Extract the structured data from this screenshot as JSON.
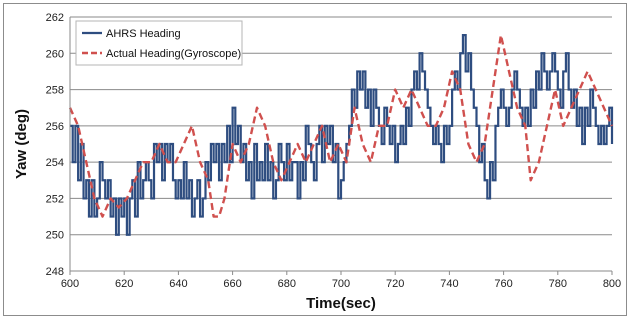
{
  "chart_data": {
    "type": "line",
    "title": "",
    "xlabel": "Time(sec)",
    "ylabel": "Yaw (deg)",
    "xlim": [
      600,
      800
    ],
    "ylim": [
      248,
      262
    ],
    "x_ticks": [
      600,
      620,
      640,
      660,
      680,
      700,
      720,
      740,
      760,
      780,
      800
    ],
    "y_ticks": [
      248,
      250,
      252,
      254,
      256,
      258,
      260,
      262
    ],
    "grid": "horizontal",
    "legend_position": "top-left",
    "series": [
      {
        "name": "AHRS Heading",
        "color": "#2e4d80",
        "style": "solid",
        "x": [
          600,
          601,
          602,
          603,
          604,
          605,
          606,
          607,
          608,
          609,
          610,
          611,
          612,
          613,
          614,
          615,
          616,
          617,
          618,
          619,
          620,
          621,
          622,
          623,
          624,
          625,
          626,
          627,
          628,
          629,
          630,
          631,
          632,
          633,
          634,
          635,
          636,
          637,
          638,
          639,
          640,
          641,
          642,
          643,
          644,
          645,
          646,
          647,
          648,
          649,
          650,
          651,
          652,
          653,
          654,
          655,
          656,
          657,
          658,
          659,
          660,
          661,
          662,
          663,
          664,
          665,
          666,
          667,
          668,
          669,
          670,
          671,
          672,
          673,
          674,
          675,
          676,
          677,
          678,
          679,
          680,
          681,
          682,
          683,
          684,
          685,
          686,
          687,
          688,
          689,
          690,
          691,
          692,
          693,
          694,
          695,
          696,
          697,
          698,
          699,
          700,
          701,
          702,
          703,
          704,
          705,
          706,
          707,
          708,
          709,
          710,
          711,
          712,
          713,
          714,
          715,
          716,
          717,
          718,
          719,
          720,
          721,
          722,
          723,
          724,
          725,
          726,
          727,
          728,
          729,
          730,
          731,
          732,
          733,
          734,
          735,
          736,
          737,
          738,
          739,
          740,
          741,
          742,
          743,
          744,
          745,
          746,
          747,
          748,
          749,
          750,
          751,
          752,
          753,
          754,
          755,
          756,
          757,
          758,
          759,
          760,
          761,
          762,
          763,
          764,
          765,
          766,
          767,
          768,
          769,
          770,
          771,
          772,
          773,
          774,
          775,
          776,
          777,
          778,
          779,
          780,
          781,
          782,
          783,
          784,
          785,
          786,
          787,
          788,
          789,
          790,
          791,
          792,
          793,
          794,
          795,
          796,
          797,
          798,
          799,
          800
        ],
        "values": [
          256,
          254,
          256,
          253,
          255,
          252,
          253,
          251,
          253,
          251,
          252,
          254,
          253,
          252,
          253,
          251,
          252,
          250,
          252,
          251,
          252,
          250,
          252,
          253,
          251,
          254,
          252,
          253,
          254,
          253,
          252,
          255,
          254,
          255,
          253,
          255,
          254,
          255,
          253,
          252,
          253,
          252,
          254,
          252,
          253,
          251,
          252,
          253,
          251,
          252,
          254,
          253,
          255,
          254,
          255,
          253,
          255,
          254,
          256,
          254,
          257,
          255,
          256,
          254,
          255,
          253,
          254,
          252,
          255,
          253,
          254,
          253,
          255,
          253,
          254,
          252,
          253,
          255,
          254,
          253,
          255,
          253,
          254,
          254,
          252,
          254,
          253,
          256,
          255,
          254,
          253,
          255,
          256,
          254,
          256,
          255,
          256,
          254,
          255,
          252,
          253,
          254,
          255,
          256,
          258,
          257,
          259,
          258,
          259,
          257,
          258,
          256,
          258,
          257,
          256,
          255,
          257,
          256,
          255,
          256,
          254,
          255,
          256,
          255,
          257,
          256,
          258,
          259,
          258,
          260,
          259,
          258,
          257,
          256,
          255,
          256,
          255,
          254,
          256,
          255,
          256,
          258,
          259,
          258,
          260,
          261,
          259,
          260,
          258,
          257,
          256,
          254,
          255,
          253,
          252,
          254,
          253,
          256,
          257,
          258,
          257,
          256,
          257,
          258,
          259,
          258,
          257,
          256,
          257,
          256,
          258,
          257,
          259,
          258,
          260,
          259,
          258,
          259,
          260,
          259,
          258,
          257,
          259,
          260,
          258,
          257,
          258,
          256,
          257,
          255,
          257,
          256,
          258,
          257,
          256,
          255,
          256,
          255,
          256,
          257,
          255
        ],
        "note": ""
      },
      {
        "name": "Actual Heading(Gyroscope)",
        "color": "#d0504e",
        "style": "dashed",
        "x": [
          600,
          603,
          606,
          609,
          612,
          615,
          618,
          621,
          624,
          627,
          630,
          633,
          636,
          639,
          642,
          645,
          648,
          651,
          653,
          655,
          657,
          660,
          663,
          666,
          669,
          672,
          675,
          678,
          681,
          684,
          687,
          690,
          693,
          696,
          699,
          702,
          705,
          708,
          711,
          714,
          717,
          720,
          723,
          726,
          729,
          732,
          735,
          738,
          741,
          744,
          747,
          750,
          753,
          756,
          759,
          762,
          765,
          768,
          770,
          773,
          776,
          779,
          782,
          785,
          788,
          791,
          794,
          797,
          800
        ],
        "values": [
          257,
          256,
          254,
          252,
          251,
          252,
          251.5,
          252,
          253,
          254,
          254,
          255,
          254,
          254,
          255,
          256,
          254,
          253,
          251,
          251,
          252,
          255,
          254,
          255,
          257,
          256,
          254,
          253,
          254,
          255,
          254,
          255,
          256,
          254,
          255,
          254,
          257,
          255,
          254,
          256,
          256,
          258,
          257,
          258,
          257,
          256,
          256,
          257,
          259,
          258,
          255,
          254,
          255,
          258,
          261,
          259,
          257,
          256,
          253,
          254,
          256,
          258,
          256,
          257,
          258,
          259,
          258,
          257,
          256
        ]
      }
    ]
  }
}
